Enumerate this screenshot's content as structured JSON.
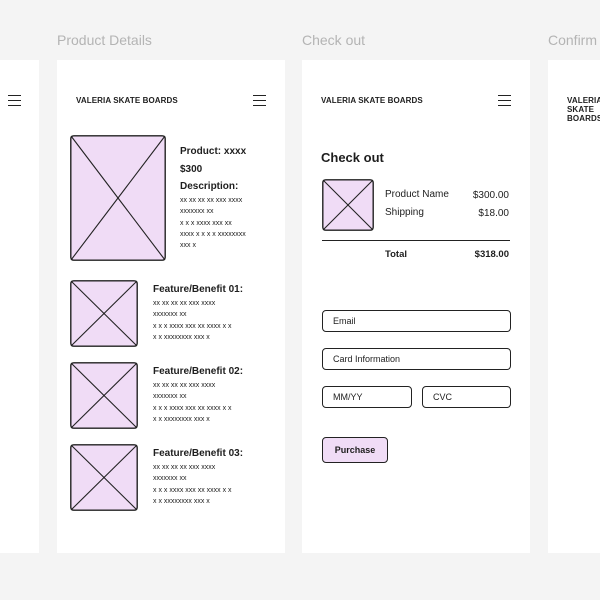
{
  "frames": {
    "product_details": "Product Details",
    "checkout": "Check out",
    "confirmation": "Confirm"
  },
  "brand": "VALERIA SKATE BOARDS",
  "product_page": {
    "product_label": "Product: xxxx",
    "price": "$300",
    "description_label": "Description:",
    "description_text": "xx xx xx xx xxx xxxx\nxxxxxxx xx\nx x x xxxx xxx xx\nxxxx x x x x xxxxxxxx\nxxx x",
    "features": [
      {
        "title": "Feature/Benefit 01:",
        "text": "xx xx xx xx xxx xxxx\nxxxxxxx xx\nx x x xxxx xxx xx xxxx x x\nx x xxxxxxxx xxx x"
      },
      {
        "title": "Feature/Benefit 02:",
        "text": "xx xx xx xx xxx xxxx\nxxxxxxx xx\nx x x xxxx xxx xx xxxx x x\nx x xxxxxxxx xxx x"
      },
      {
        "title": "Feature/Benefit 03:",
        "text": "xx xx xx xx xxx xxxx\nxxxxxxx xx\nx x x xxxx xxx xx xxxx x x\nx x xxxxxxxx xxx x"
      }
    ]
  },
  "checkout_page": {
    "title": "Check out",
    "product_name_label": "Product Name",
    "product_price": "$300.00",
    "shipping_label": "Shipping",
    "shipping_price": "$18.00",
    "total_label": "Total",
    "total_price": "$318.00",
    "email_placeholder": "Email",
    "card_placeholder": "Card Information",
    "expiry_placeholder": "MM/YY",
    "cvc_placeholder": "CVC",
    "purchase_label": "Purchase"
  },
  "colors": {
    "placeholder_fill": "#f0dcf6",
    "stroke": "#222222",
    "canvas": "#f4f4f4"
  }
}
